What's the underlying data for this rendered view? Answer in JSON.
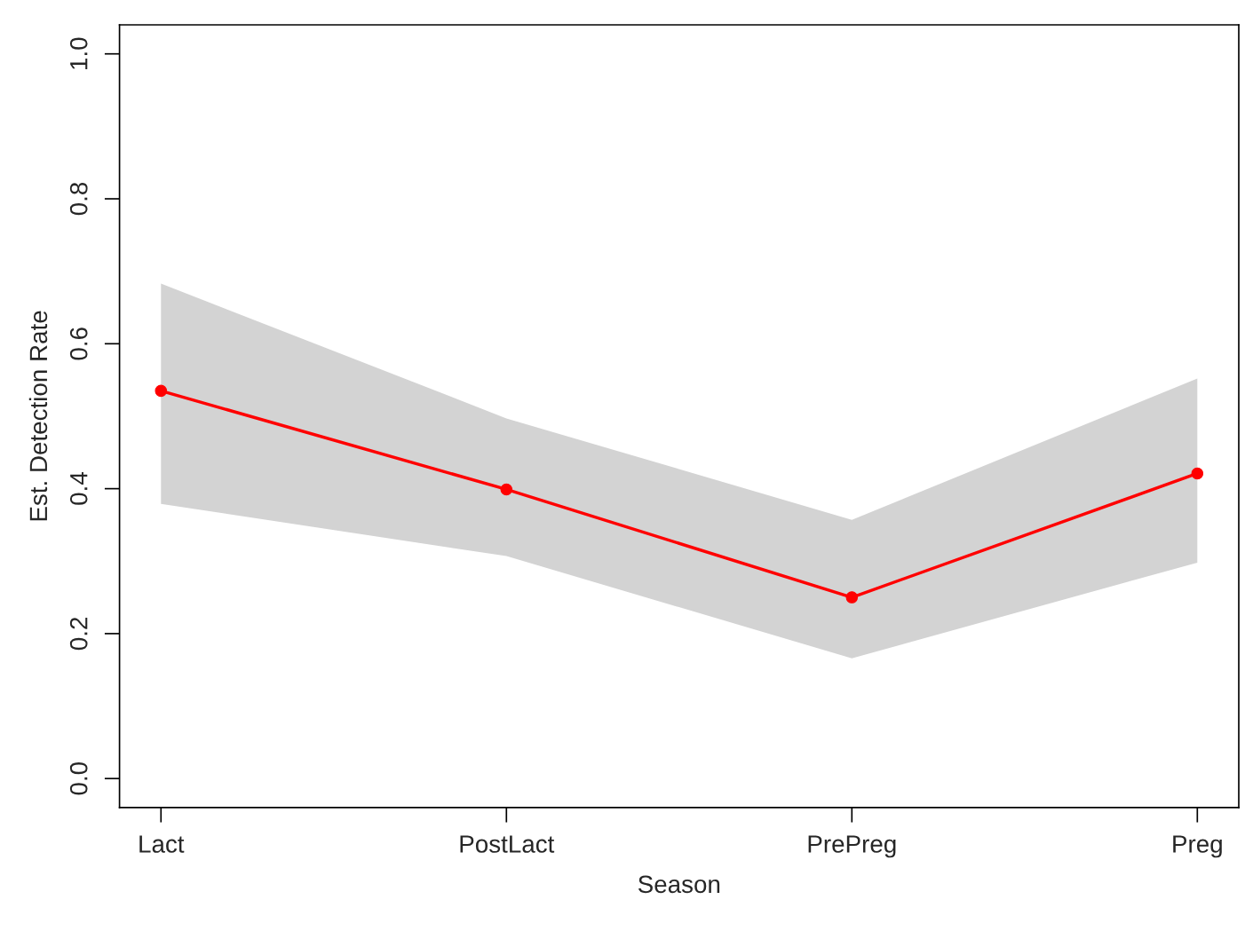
{
  "chart_data": {
    "type": "line",
    "xlabel": "Season",
    "ylabel": "Est. Detection Rate",
    "categories": [
      "Lact",
      "PostLact",
      "PrePreg",
      "Preg"
    ],
    "series": [
      {
        "color": "#ff0000",
        "values": [
          0.535,
          0.399,
          0.25,
          0.421
        ],
        "lower": [
          0.379,
          0.307,
          0.166,
          0.298
        ],
        "upper": [
          0.683,
          0.497,
          0.357,
          0.552
        ]
      }
    ],
    "ylim": [
      -0.04,
      1.04
    ],
    "yticks": [
      {
        "value": 0,
        "label": "0.0"
      },
      0.2,
      0.4,
      0.6,
      0.8,
      {
        "value": 1,
        "label": "1.0"
      }
    ],
    "grid": false,
    "legend": false,
    "marker": "circle",
    "line_style": "solid"
  }
}
